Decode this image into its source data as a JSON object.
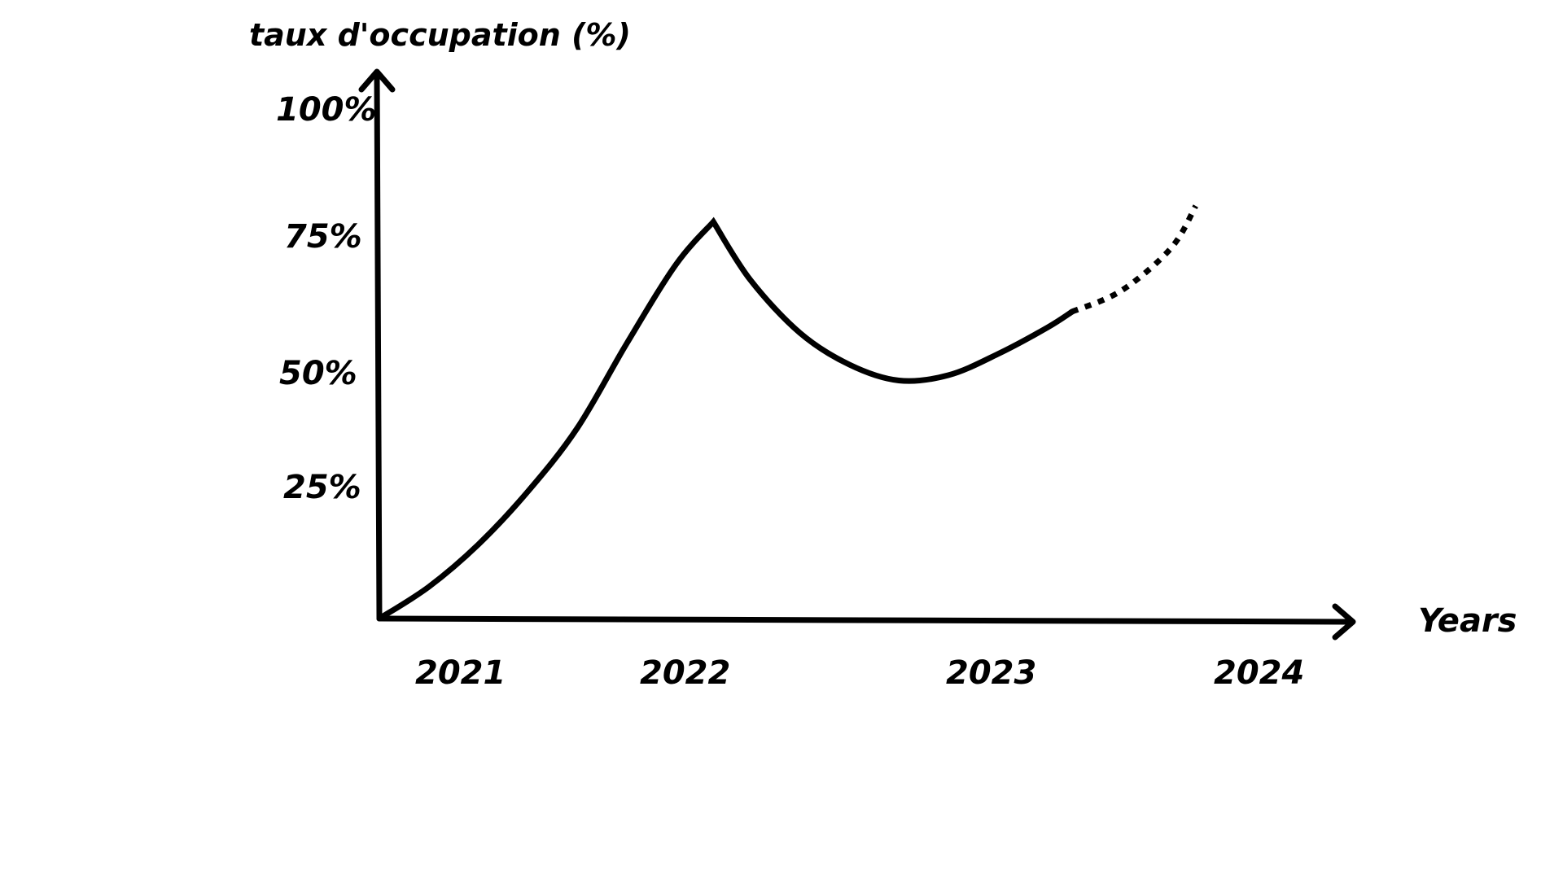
{
  "chart_data": {
    "type": "line",
    "ylabel": "taux d'occupation (%)",
    "xlabel": "Years",
    "y_tick_labels": [
      "25%",
      "50%",
      "75%",
      "100%"
    ],
    "y_ticks": [
      25,
      50,
      75,
      100
    ],
    "x_tick_labels": [
      "2021",
      "2022",
      "2023",
      "2024"
    ],
    "x_ticks": [
      2021,
      2022,
      2023,
      2024
    ],
    "xlim": [
      2020.8,
      2024.4
    ],
    "ylim": [
      0,
      100
    ],
    "series": [
      {
        "style": "solid",
        "x": [
          2020.8,
          2021.0,
          2021.2,
          2021.4,
          2021.6,
          2021.8,
          2022.0,
          2022.15,
          2022.3,
          2022.5,
          2022.7,
          2022.9,
          2023.1,
          2023.3,
          2023.5,
          2023.6
        ],
        "y": [
          0,
          6,
          14,
          24,
          36,
          52,
          67,
          75,
          64,
          54,
          48,
          45,
          46,
          50,
          55,
          58
        ]
      },
      {
        "style": "dotted",
        "x": [
          2023.6,
          2023.8,
          2024.0,
          2024.1
        ],
        "y": [
          58,
          62,
          70,
          78
        ]
      }
    ],
    "grid": false,
    "legend": "none"
  }
}
